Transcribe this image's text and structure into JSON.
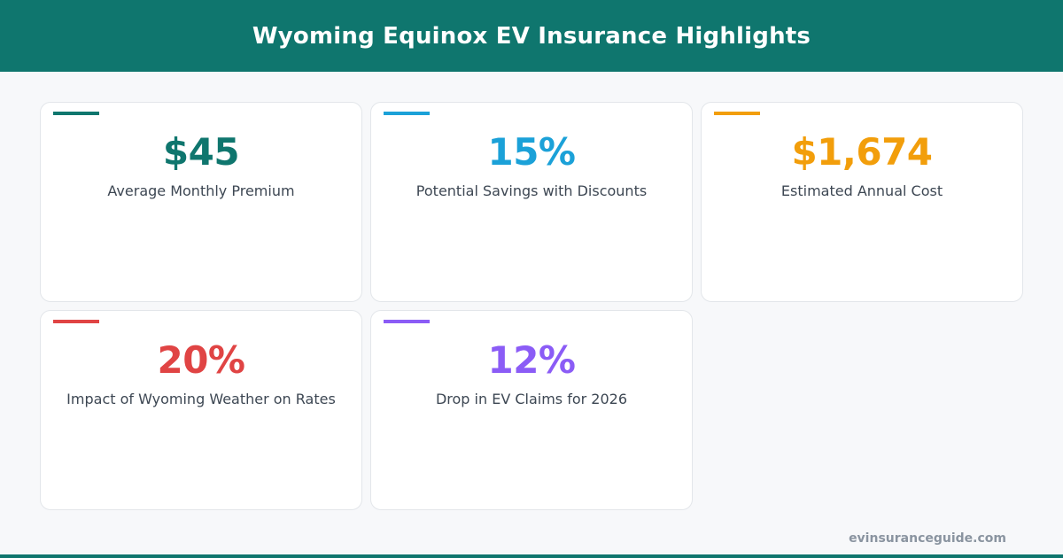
{
  "header": {
    "title": "Wyoming Equinox EV Insurance Highlights",
    "background_color": "#0f766e"
  },
  "cards": [
    {
      "value": "$45",
      "label": "Average Monthly Premium",
      "color": "#0f766e"
    },
    {
      "value": "15%",
      "label": "Potential Savings with Discounts",
      "color": "#1ba1d8"
    },
    {
      "value": "$1,674",
      "label": "Estimated Annual Cost",
      "color": "#f29e0b"
    },
    {
      "value": "20%",
      "label": "Impact of Wyoming Weather on Rates",
      "color": "#e04444"
    },
    {
      "value": "12%",
      "label": "Drop in EV Claims for 2026",
      "color": "#8b5cf6"
    }
  ],
  "footer": {
    "site": "evinsuranceguide.com"
  }
}
